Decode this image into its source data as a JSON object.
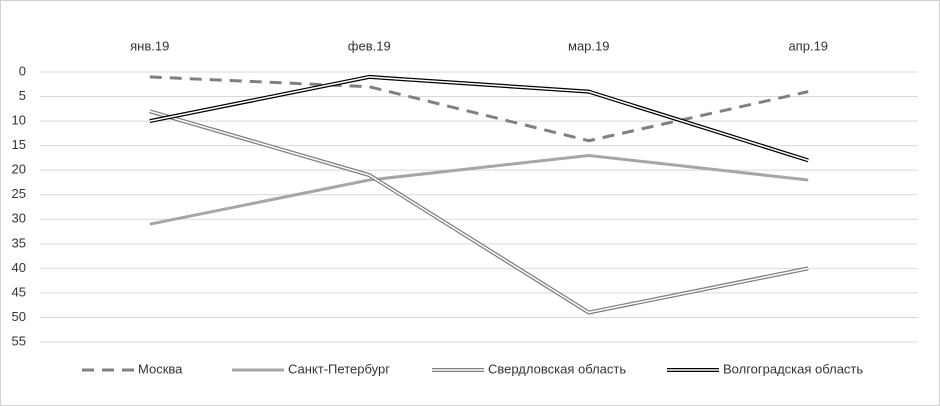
{
  "chart_data": {
    "type": "line",
    "categories": [
      "янв.19",
      "фев.19",
      "мар.19",
      "апр.19"
    ],
    "ylim": [
      0,
      55
    ],
    "yticks": [
      0,
      5,
      10,
      15,
      20,
      25,
      30,
      35,
      40,
      45,
      50,
      55
    ],
    "inverted": true,
    "grid": true,
    "legend": "bottom",
    "series": [
      {
        "name": "Москва",
        "color": "#808080",
        "style": "dashed",
        "values": [
          1,
          3,
          14,
          4
        ]
      },
      {
        "name": "Санкт-Петербург",
        "color": "#a6a6a6",
        "style": "solid",
        "values": [
          31,
          22,
          17,
          22
        ]
      },
      {
        "name": "Свердловская область",
        "color": "#7f7f7f",
        "style": "double",
        "values": [
          8,
          21,
          49,
          40
        ]
      },
      {
        "name": "Волгоградская область",
        "color": "#000000",
        "style": "double",
        "values": [
          10,
          1,
          4,
          18
        ]
      }
    ]
  }
}
